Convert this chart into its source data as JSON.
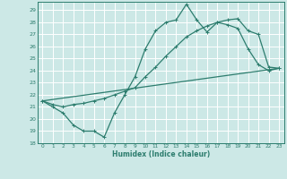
{
  "xlabel": "Humidex (Indice chaleur)",
  "bg_color": "#cce8e6",
  "grid_color": "#ffffff",
  "line_color": "#2d7d6e",
  "xlim": [
    -0.5,
    23.5
  ],
  "ylim": [
    18,
    29.7
  ],
  "yticks": [
    18,
    19,
    20,
    21,
    22,
    23,
    24,
    25,
    26,
    27,
    28,
    29
  ],
  "xticks": [
    0,
    1,
    2,
    3,
    4,
    5,
    6,
    7,
    8,
    9,
    10,
    11,
    12,
    13,
    14,
    15,
    16,
    17,
    18,
    19,
    20,
    21,
    22,
    23
  ],
  "line1_x": [
    0,
    1,
    2,
    3,
    4,
    5,
    6,
    7,
    8,
    9,
    10,
    11,
    12,
    13,
    14,
    15,
    16,
    17,
    18,
    19,
    20,
    21,
    22,
    23
  ],
  "line1_y": [
    21.5,
    21.0,
    20.5,
    19.5,
    19.0,
    19.0,
    18.5,
    20.5,
    22.0,
    23.5,
    25.8,
    27.3,
    28.0,
    28.2,
    29.5,
    28.2,
    27.2,
    28.0,
    27.8,
    27.5,
    25.8,
    24.5,
    24.0,
    24.2
  ],
  "line2_x": [
    0,
    1,
    2,
    3,
    4,
    5,
    6,
    7,
    8,
    9,
    10,
    11,
    12,
    13,
    14,
    15,
    16,
    17,
    18,
    19,
    20,
    21,
    22,
    23
  ],
  "line2_y": [
    21.5,
    21.2,
    21.0,
    21.2,
    21.3,
    21.5,
    21.7,
    22.0,
    22.3,
    22.6,
    23.5,
    24.3,
    25.2,
    26.0,
    26.8,
    27.3,
    27.7,
    28.0,
    28.2,
    28.3,
    27.3,
    27.0,
    24.3,
    24.2
  ],
  "line3_x": [
    0,
    23
  ],
  "line3_y": [
    21.5,
    24.2
  ],
  "marker_size": 3.0,
  "linewidth": 0.9
}
